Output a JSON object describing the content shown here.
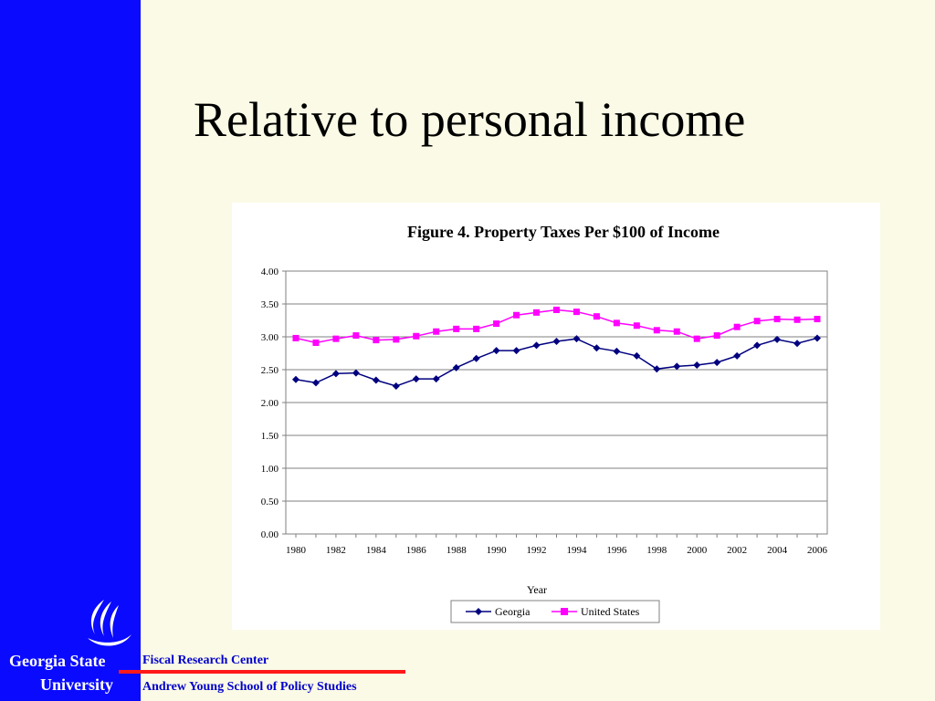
{
  "slide": {
    "title": "Relative to personal income",
    "university_line1": "Georgia State",
    "university_line2": "University",
    "footer_line1": "Fiscal Research Center",
    "footer_line2": "Andrew Young School of Policy Studies",
    "logo_icon": "flame-logo-icon",
    "colors": {
      "sidebar": "#0a0aff",
      "background": "#fafae6",
      "footer_text": "#0000cc",
      "rule": "#ff1a1a"
    }
  },
  "chart_data": {
    "type": "line",
    "title": "Figure 4. Property Taxes Per $100 of Income",
    "xlabel": "Year",
    "ylabel": "",
    "ylim": [
      0,
      4
    ],
    "yticks": [
      "0.00",
      "0.50",
      "1.00",
      "1.50",
      "2.00",
      "2.50",
      "3.00",
      "3.50",
      "4.00"
    ],
    "xticks": [
      "1980",
      "1982",
      "1984",
      "1986",
      "1988",
      "1990",
      "1992",
      "1994",
      "1996",
      "1998",
      "2000",
      "2002",
      "2004",
      "2006"
    ],
    "x": [
      1980,
      1981,
      1982,
      1983,
      1984,
      1985,
      1986,
      1987,
      1988,
      1989,
      1990,
      1991,
      1992,
      1993,
      1994,
      1995,
      1996,
      1997,
      1998,
      1999,
      2000,
      2001,
      2002,
      2003,
      2004,
      2005,
      2006
    ],
    "grid": true,
    "legend": "bottom",
    "series": [
      {
        "name": "Georgia",
        "color": "#00007f",
        "marker": "diamond",
        "values": [
          2.35,
          2.3,
          2.44,
          2.45,
          2.34,
          2.25,
          2.36,
          2.36,
          2.53,
          2.67,
          2.79,
          2.79,
          2.87,
          2.93,
          2.97,
          2.83,
          2.78,
          2.71,
          2.51,
          2.55,
          2.57,
          2.61,
          2.71,
          2.87,
          2.96,
          2.9,
          2.98
        ]
      },
      {
        "name": "United States",
        "color": "#ff00ff",
        "marker": "square",
        "values": [
          2.98,
          2.91,
          2.97,
          3.02,
          2.95,
          2.96,
          3.01,
          3.08,
          3.12,
          3.12,
          3.2,
          3.33,
          3.37,
          3.41,
          3.38,
          3.31,
          3.21,
          3.17,
          3.1,
          3.08,
          2.97,
          3.02,
          3.15,
          3.24,
          3.27,
          3.26,
          3.27
        ]
      }
    ]
  }
}
